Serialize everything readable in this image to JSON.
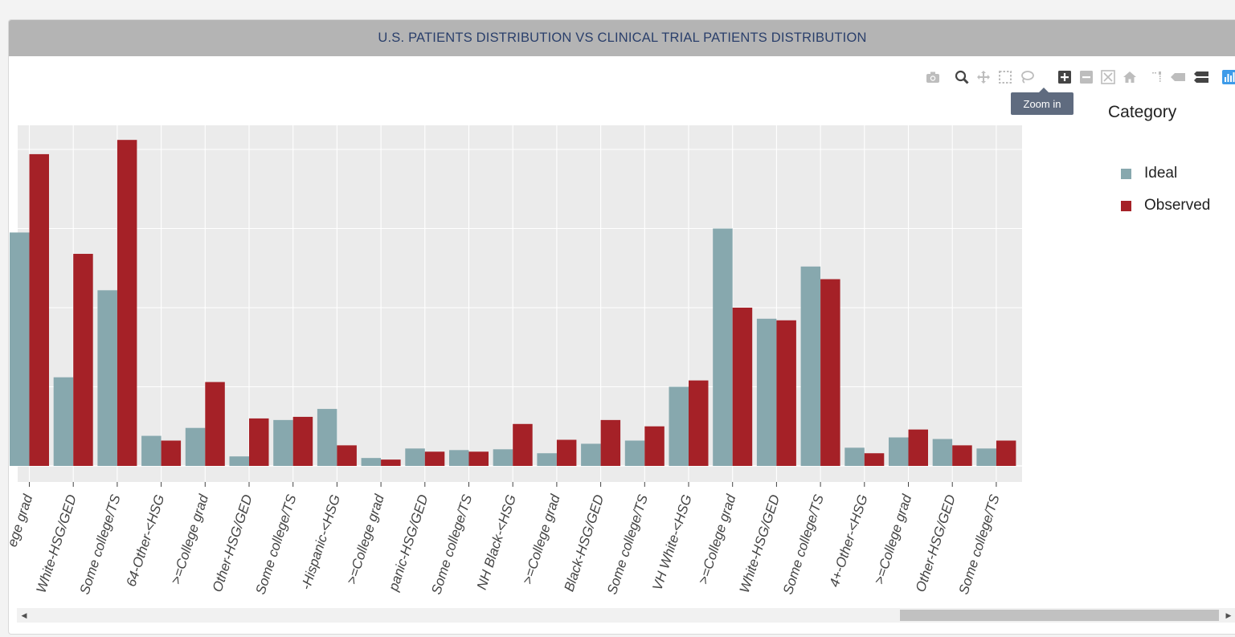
{
  "panel": {
    "title": "U.S. PATIENTS DISTRIBUTION VS CLINICAL TRIAL PATIENTS DISTRIBUTION"
  },
  "toolbar": {
    "buttons": [
      "camera-icon",
      "zoom-icon",
      "pan-icon",
      "box-select-icon",
      "lasso-select-icon",
      "zoom-in-icon",
      "zoom-out-icon",
      "autoscale-icon",
      "reset-axes-icon",
      "spike-lines-icon",
      "hover-closest-icon",
      "hover-compare-icon",
      "plotly-logo-icon"
    ],
    "active": "zoom-in-icon",
    "tooltip": "Zoom in"
  },
  "legend": {
    "title": "Category",
    "items": [
      {
        "label": "Ideal",
        "color": "#87a8ae"
      },
      {
        "label": "Observed",
        "color": "#a52127"
      }
    ]
  },
  "chart_data": {
    "type": "bar",
    "categories": [
      "ege grad",
      "White-HSG/GED",
      "Some college/TS",
      "64-Other-<HSG",
      ">=College grad",
      "Other-HSG/GED",
      "Some college/TS",
      "-Hispanic-<HSG",
      ">=College grad",
      "panic-HSG/GED",
      "Some college/TS",
      "NH Black-<HSG",
      ">=College grad",
      "Black-HSG/GED",
      "Some college/TS",
      "VH White-<HSG",
      ">=College grad",
      "White-HSG/GED",
      "Some college/TS",
      "4+-Other-<HSG",
      ">=College grad",
      "Other-HSG/GED",
      "Some college/TS"
    ],
    "series": [
      {
        "name": "Ideal",
        "color": "#87a8ae",
        "values": [
          14.75,
          5.6,
          11.1,
          1.9,
          2.4,
          0.6,
          2.9,
          3.6,
          0.5,
          1.1,
          1.0,
          1.05,
          0.8,
          1.4,
          1.6,
          5.0,
          15.0,
          9.3,
          12.6,
          1.15,
          1.8,
          1.7,
          1.1
        ]
      },
      {
        "name": "Observed",
        "color": "#a52127",
        "values": [
          19.7,
          13.4,
          20.6,
          1.6,
          5.3,
          3.0,
          3.1,
          1.3,
          0.4,
          0.9,
          0.9,
          2.65,
          1.65,
          2.9,
          2.5,
          5.4,
          10.0,
          9.2,
          11.8,
          0.8,
          2.3,
          1.3,
          1.6
        ]
      }
    ],
    "ylim": [
      -1.0,
      21.6
    ],
    "grid": true,
    "legend_position": "right"
  }
}
